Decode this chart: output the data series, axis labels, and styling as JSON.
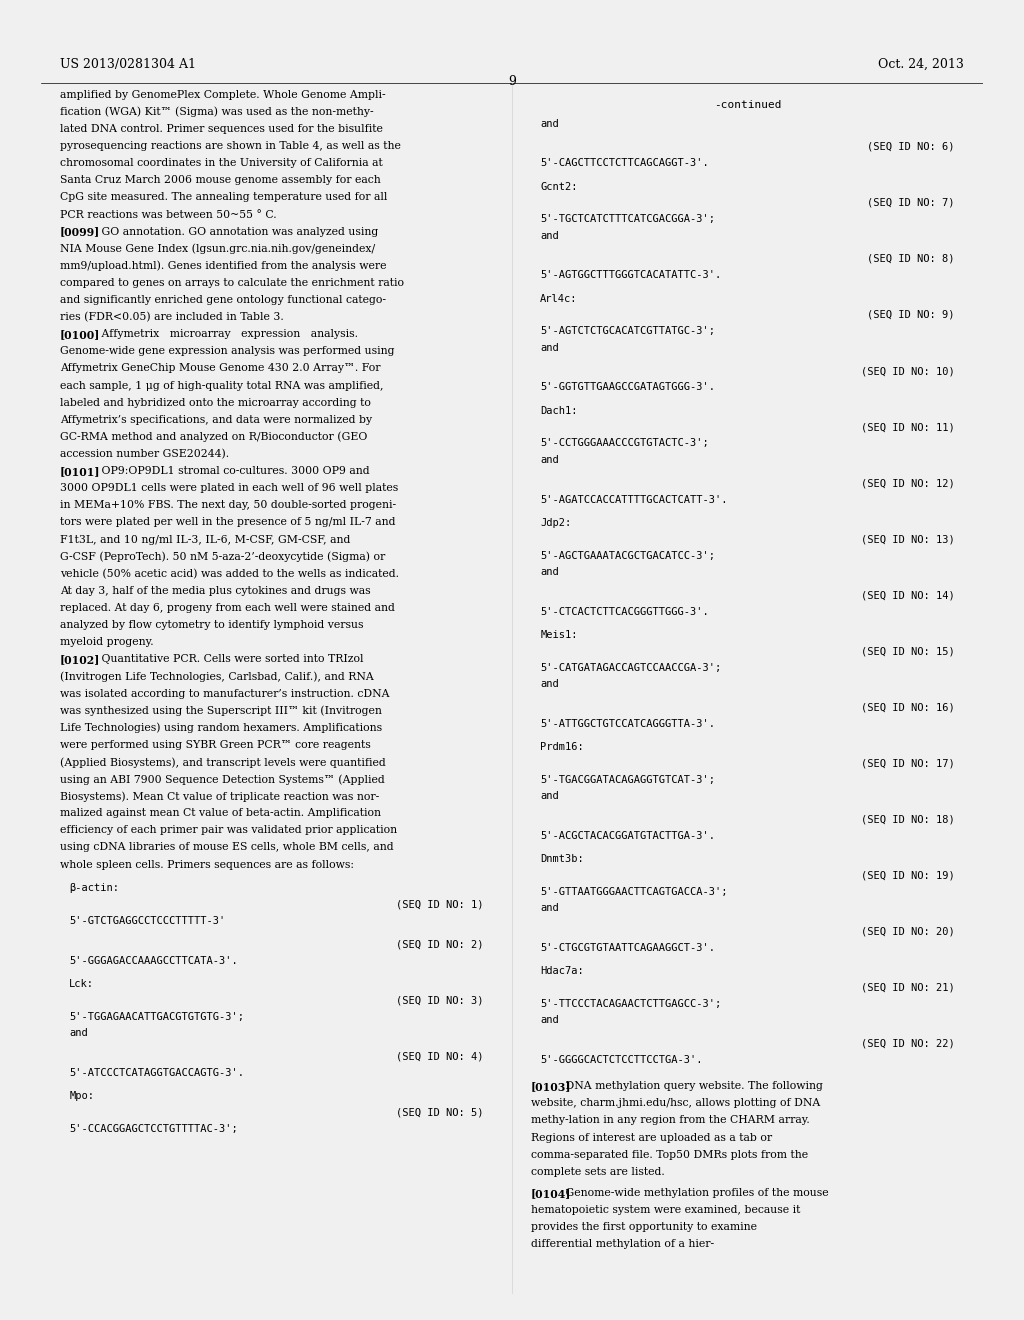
{
  "background_color": "#f0f0f0",
  "page_background": "#ffffff",
  "header_left": "US 2013/0281304 A1",
  "header_right": "Oct. 24, 2013",
  "page_number": "9",
  "left_column": [
    "amplified by GenomePlex Complete. Whole Genome Ampli-",
    "fication (WGA) Kit™ (Sigma) was used as the non-methy-",
    "lated DNA control. Primer sequences used for the bisulfite",
    "pyrosequencing reactions are shown in Table 4, as well as the",
    "chromosomal coordinates in the University of California at",
    "Santa Cruz March 2006 mouse genome assembly for each",
    "CpG site measured. The annealing temperature used for all",
    "PCR reactions was between 50~55 ° C.",
    "[0099]   GO annotation. GO annotation was analyzed using",
    "NIA Mouse Gene Index (lgsun.grc.nia.nih.gov/geneindex/",
    "mm9/upload.html). Genes identified from the analysis were",
    "compared to genes on arrays to calculate the enrichment ratio",
    "and significantly enriched gene ontology functional catego-",
    "ries (FDR<0.05) are included in Table 3.",
    "[0100]   Affymetrix   microarray   expression   analysis.",
    "Genome-wide gene expression analysis was performed using",
    "Affymetrix GeneChip Mouse Genome 430 2.0 Array™. For",
    "each sample, 1 μg of high-quality total RNA was amplified,",
    "labeled and hybridized onto the microarray according to",
    "Affymetrix’s specifications, and data were normalized by",
    "GC-RMA method and analyzed on R/Bioconductor (GEO",
    "accession number GSE20244).",
    "[0101]   OP9:OP9DL1 stromal co-cultures. 3000 OP9 and",
    "3000 OP9DL1 cells were plated in each well of 96 well plates",
    "in MEMa+10% FBS. The next day, 50 double-sorted progeni-",
    "tors were plated per well in the presence of 5 ng/ml IL-7 and",
    "F1t3L, and 10 ng/ml IL-3, IL-6, M-CSF, GM-CSF, and",
    "G-CSF (PeproTech). 50 nM 5-aza-2’-deoxycytide (Sigma) or",
    "vehicle (50% acetic acid) was added to the wells as indicated.",
    "At day 3, half of the media plus cytokines and drugs was",
    "replaced. At day 6, progeny from each well were stained and",
    "analyzed by flow cytometry to identify lymphoid versus",
    "myeloid progeny.",
    "[0102]   Quantitative PCR. Cells were sorted into TRIzol",
    "(Invitrogen Life Technologies, Carlsbad, Calif.), and RNA",
    "was isolated according to manufacturer’s instruction. cDNA",
    "was synthesized using the Superscript III™ kit (Invitrogen",
    "Life Technologies) using random hexamers. Amplifications",
    "were performed using SYBR Green PCR™ core reagents",
    "(Applied Biosystems), and transcript levels were quantified",
    "using an ABI 7900 Sequence Detection Systems™ (Applied",
    "Biosystems). Mean Ct value of triplicate reaction was nor-",
    "malized against mean Ct value of beta-actin. Amplification",
    "efficiency of each primer pair was validated prior application",
    "using cDNA libraries of mouse ES cells, whole BM cells, and",
    "whole spleen cells. Primers sequences are as follows:"
  ],
  "left_seq_block": [
    {
      "indent": 0,
      "text": "β-actin:"
    },
    {
      "indent": 1,
      "text": "(SEQ ID NO: 1)"
    },
    {
      "indent": 0,
      "text": "5'-GTCTGAGGCCTCCCTTTTT-3'"
    },
    {
      "indent": 0,
      "text": ""
    },
    {
      "indent": 1,
      "text": "(SEQ ID NO: 2)"
    },
    {
      "indent": 0,
      "text": "5'-GGGAGACCAAAGCCTTCATA-3'."
    },
    {
      "indent": 0,
      "text": ""
    },
    {
      "indent": 0,
      "text": "Lck:"
    },
    {
      "indent": 1,
      "text": "(SEQ ID NO: 3)"
    },
    {
      "indent": 0,
      "text": "5'-TGGAGAACATTGACGTGTGTG-3';"
    },
    {
      "indent": 0,
      "text": "and"
    },
    {
      "indent": 0,
      "text": ""
    },
    {
      "indent": 1,
      "text": "(SEQ ID NO: 4)"
    },
    {
      "indent": 0,
      "text": "5'-ATCCCTCATAGGTGACCAGTG-3'."
    },
    {
      "indent": 0,
      "text": ""
    },
    {
      "indent": 0,
      "text": "Mpo:"
    },
    {
      "indent": 1,
      "text": "(SEQ ID NO: 5)"
    },
    {
      "indent": 0,
      "text": "5'-CCACGGAGCTCCTGTTTTAC-3';"
    }
  ],
  "right_col_continued": "-continued",
  "right_seq_block": [
    {
      "indent": 0,
      "text": "and"
    },
    {
      "indent": 0,
      "text": ""
    },
    {
      "indent": 1,
      "text": "(SEQ ID NO: 6)"
    },
    {
      "indent": 0,
      "text": "5'-CAGCTTCCTCTTCAGCAGGT-3'."
    },
    {
      "indent": 0,
      "text": ""
    },
    {
      "indent": 0,
      "text": "Gcnt2:"
    },
    {
      "indent": 1,
      "text": "(SEQ ID NO: 7)"
    },
    {
      "indent": 0,
      "text": "5'-TGCTCATCTTTCATCGACGGA-3';"
    },
    {
      "indent": 0,
      "text": "and"
    },
    {
      "indent": 0,
      "text": ""
    },
    {
      "indent": 1,
      "text": "(SEQ ID NO: 8)"
    },
    {
      "indent": 0,
      "text": "5'-AGTGGCTTTGGGTCACATATTC-3'."
    },
    {
      "indent": 0,
      "text": ""
    },
    {
      "indent": 0,
      "text": "Arl4c:"
    },
    {
      "indent": 1,
      "text": "(SEQ ID NO: 9)"
    },
    {
      "indent": 0,
      "text": "5'-AGTCTCTGCACATCGTTATGC-3';"
    },
    {
      "indent": 0,
      "text": "and"
    },
    {
      "indent": 0,
      "text": ""
    },
    {
      "indent": 1,
      "text": "(SEQ ID NO: 10)"
    },
    {
      "indent": 0,
      "text": "5'-GGTGTTGAAGCCGATAGTGGG-3'."
    },
    {
      "indent": 0,
      "text": ""
    },
    {
      "indent": 0,
      "text": "Dach1:"
    },
    {
      "indent": 1,
      "text": "(SEQ ID NO: 11)"
    },
    {
      "indent": 0,
      "text": "5'-CCTGGGAAACCCGTGTACTC-3';"
    },
    {
      "indent": 0,
      "text": "and"
    },
    {
      "indent": 0,
      "text": ""
    },
    {
      "indent": 1,
      "text": "(SEQ ID NO: 12)"
    },
    {
      "indent": 0,
      "text": "5'-AGATCCACCATTTTGCACTCATT-3'."
    },
    {
      "indent": 0,
      "text": ""
    },
    {
      "indent": 0,
      "text": "Jdp2:"
    },
    {
      "indent": 1,
      "text": "(SEQ ID NO: 13)"
    },
    {
      "indent": 0,
      "text": "5'-AGCTGAAATACGCTGACATCC-3';"
    },
    {
      "indent": 0,
      "text": "and"
    },
    {
      "indent": 0,
      "text": ""
    },
    {
      "indent": 1,
      "text": "(SEQ ID NO: 14)"
    },
    {
      "indent": 0,
      "text": "5'-CTCACTCTTCACGGGTTGGG-3'."
    },
    {
      "indent": 0,
      "text": ""
    },
    {
      "indent": 0,
      "text": "Meis1:"
    },
    {
      "indent": 1,
      "text": "(SEQ ID NO: 15)"
    },
    {
      "indent": 0,
      "text": "5'-CATGATAGACCAGTCCAACCGA-3';"
    },
    {
      "indent": 0,
      "text": "and"
    },
    {
      "indent": 0,
      "text": ""
    },
    {
      "indent": 1,
      "text": "(SEQ ID NO: 16)"
    },
    {
      "indent": 0,
      "text": "5'-ATTGGCTGTCCATCAGGGTTA-3'."
    },
    {
      "indent": 0,
      "text": ""
    },
    {
      "indent": 0,
      "text": "Prdm16:"
    },
    {
      "indent": 1,
      "text": "(SEQ ID NO: 17)"
    },
    {
      "indent": 0,
      "text": "5'-TGACGGATACAGAGGTGTCAT-3';"
    },
    {
      "indent": 0,
      "text": "and"
    },
    {
      "indent": 0,
      "text": ""
    },
    {
      "indent": 1,
      "text": "(SEQ ID NO: 18)"
    },
    {
      "indent": 0,
      "text": "5'-ACGCTACACGGATGTACTTGA-3'."
    },
    {
      "indent": 0,
      "text": ""
    },
    {
      "indent": 0,
      "text": "Dnmt3b:"
    },
    {
      "indent": 1,
      "text": "(SEQ ID NO: 19)"
    },
    {
      "indent": 0,
      "text": "5'-GTTAATGGGAACTTCAGTGACCA-3';"
    },
    {
      "indent": 0,
      "text": "and"
    },
    {
      "indent": 0,
      "text": ""
    },
    {
      "indent": 1,
      "text": "(SEQ ID NO: 20)"
    },
    {
      "indent": 0,
      "text": "5'-CTGCGTGTAATTCAGAAGGCT-3'."
    },
    {
      "indent": 0,
      "text": ""
    },
    {
      "indent": 0,
      "text": "Hdac7a:"
    },
    {
      "indent": 1,
      "text": "(SEQ ID NO: 21)"
    },
    {
      "indent": 0,
      "text": "5'-TTCCCTACAGAACTCTTGAGCC-3';"
    },
    {
      "indent": 0,
      "text": "and"
    },
    {
      "indent": 0,
      "text": ""
    },
    {
      "indent": 1,
      "text": "(SEQ ID NO: 22)"
    },
    {
      "indent": 0,
      "text": "5'-GGGGCACTCTCCTTCCTGA-3'."
    }
  ],
  "right_bottom_paragraphs": [
    "[0103]   DNA methylation query website. The following website, charm.jhmi.edu/hsc, allows plotting of DNA methy-lation in any region from the CHARM array. Regions of interest are uploaded as a tab or comma-separated file. Top50 DMRs plots from the complete sets are listed.",
    "[0104]   Genome-wide methylation profiles of the mouse hematopoietic system were examined, because it provides the first opportunity to examine differential methylation of a hier-"
  ]
}
